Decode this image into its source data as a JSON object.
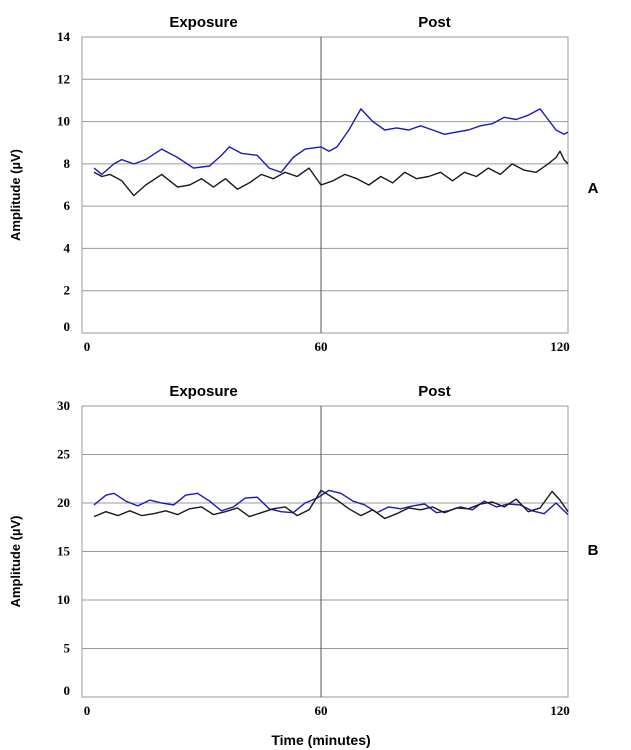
{
  "chart_data": [
    {
      "type": "line",
      "panel_label": "A",
      "section_labels": [
        "Exposure",
        "Post"
      ],
      "ylabel": "Amplitude (µV)",
      "xlabel": "",
      "xlim": [
        0,
        122
      ],
      "ylim": [
        0,
        14
      ],
      "x_ticks": [
        0,
        60,
        120
      ],
      "y_ticks": [
        0,
        2,
        4,
        6,
        8,
        10,
        12,
        14
      ],
      "divider_x": 60,
      "grid": "horizontal",
      "series": [
        {
          "color": "#1a1ab8",
          "x": [
            3,
            5,
            8,
            10,
            13,
            16,
            20,
            24,
            28,
            32,
            35,
            37,
            40,
            44,
            47,
            50,
            53,
            56,
            60,
            62,
            64,
            67,
            70,
            73,
            76,
            79,
            82,
            85,
            88,
            91,
            94,
            97,
            100,
            103,
            106,
            109,
            112,
            115,
            117,
            119,
            121,
            122
          ],
          "y": [
            7.8,
            7.5,
            8.0,
            8.2,
            8.0,
            8.2,
            8.7,
            8.3,
            7.8,
            7.9,
            8.4,
            8.8,
            8.5,
            8.4,
            7.8,
            7.6,
            8.3,
            8.7,
            8.8,
            8.6,
            8.8,
            9.6,
            10.6,
            10.0,
            9.6,
            9.7,
            9.6,
            9.8,
            9.6,
            9.4,
            9.5,
            9.6,
            9.8,
            9.9,
            10.2,
            10.1,
            10.3,
            10.6,
            10.1,
            9.6,
            9.4,
            9.5
          ]
        },
        {
          "color": "#1a1a1a",
          "x": [
            3,
            5,
            7,
            10,
            13,
            16,
            20,
            24,
            27,
            30,
            33,
            36,
            39,
            42,
            45,
            48,
            51,
            54,
            57,
            60,
            63,
            66,
            69,
            72,
            75,
            78,
            81,
            84,
            87,
            90,
            93,
            96,
            99,
            102,
            105,
            108,
            111,
            114,
            117,
            119,
            120,
            121,
            122
          ],
          "y": [
            7.6,
            7.4,
            7.5,
            7.2,
            6.5,
            7.0,
            7.5,
            6.9,
            7.0,
            7.3,
            6.9,
            7.3,
            6.8,
            7.1,
            7.5,
            7.3,
            7.6,
            7.4,
            7.8,
            7.0,
            7.2,
            7.5,
            7.3,
            7.0,
            7.4,
            7.1,
            7.6,
            7.3,
            7.4,
            7.6,
            7.2,
            7.6,
            7.4,
            7.8,
            7.5,
            8.0,
            7.7,
            7.6,
            8.0,
            8.3,
            8.6,
            8.2,
            8.0
          ]
        }
      ]
    },
    {
      "type": "line",
      "panel_label": "B",
      "section_labels": [
        "Exposure",
        "Post"
      ],
      "ylabel": "Amplitude (µV)",
      "xlabel": "Time (minutes)",
      "xlim": [
        0,
        122
      ],
      "ylim": [
        0,
        30
      ],
      "x_ticks": [
        0,
        60,
        120
      ],
      "y_ticks": [
        0,
        5,
        10,
        15,
        20,
        25,
        30
      ],
      "divider_x": 60,
      "grid": "horizontal",
      "series": [
        {
          "color": "#1a1ab8",
          "x": [
            3,
            6,
            8,
            11,
            14,
            17,
            20,
            23,
            26,
            29,
            32,
            35,
            38,
            41,
            44,
            47,
            50,
            53,
            56,
            59,
            62,
            65,
            68,
            71,
            74,
            77,
            80,
            83,
            86,
            89,
            92,
            95,
            98,
            101,
            104,
            107,
            110,
            113,
            116,
            119,
            121,
            122
          ],
          "y": [
            19.8,
            20.8,
            21.0,
            20.2,
            19.7,
            20.3,
            20.0,
            19.8,
            20.8,
            21.0,
            20.2,
            19.2,
            19.6,
            20.5,
            20.6,
            19.4,
            19.1,
            19.0,
            20.0,
            20.5,
            21.3,
            21.0,
            20.2,
            19.8,
            19.0,
            19.6,
            19.4,
            19.7,
            19.9,
            19.0,
            19.2,
            19.6,
            19.3,
            20.2,
            19.6,
            19.9,
            19.8,
            19.2,
            18.9,
            20.0,
            19.2,
            18.8
          ]
        },
        {
          "color": "#1a1a1a",
          "x": [
            3,
            6,
            9,
            12,
            15,
            18,
            21,
            24,
            27,
            30,
            33,
            36,
            39,
            42,
            45,
            48,
            51,
            54,
            57,
            60,
            62,
            64,
            67,
            70,
            73,
            76,
            79,
            82,
            85,
            88,
            91,
            94,
            97,
            100,
            103,
            106,
            109,
            112,
            115,
            118,
            120,
            122
          ],
          "y": [
            18.6,
            19.1,
            18.7,
            19.2,
            18.7,
            18.9,
            19.2,
            18.8,
            19.4,
            19.6,
            18.8,
            19.1,
            19.5,
            18.6,
            19.0,
            19.4,
            19.6,
            18.7,
            19.3,
            21.3,
            20.8,
            20.3,
            19.4,
            18.7,
            19.3,
            18.4,
            18.9,
            19.5,
            19.3,
            19.6,
            19.0,
            19.5,
            19.4,
            19.9,
            20.1,
            19.6,
            20.4,
            19.1,
            19.5,
            21.2,
            20.3,
            19.1
          ]
        }
      ]
    }
  ]
}
